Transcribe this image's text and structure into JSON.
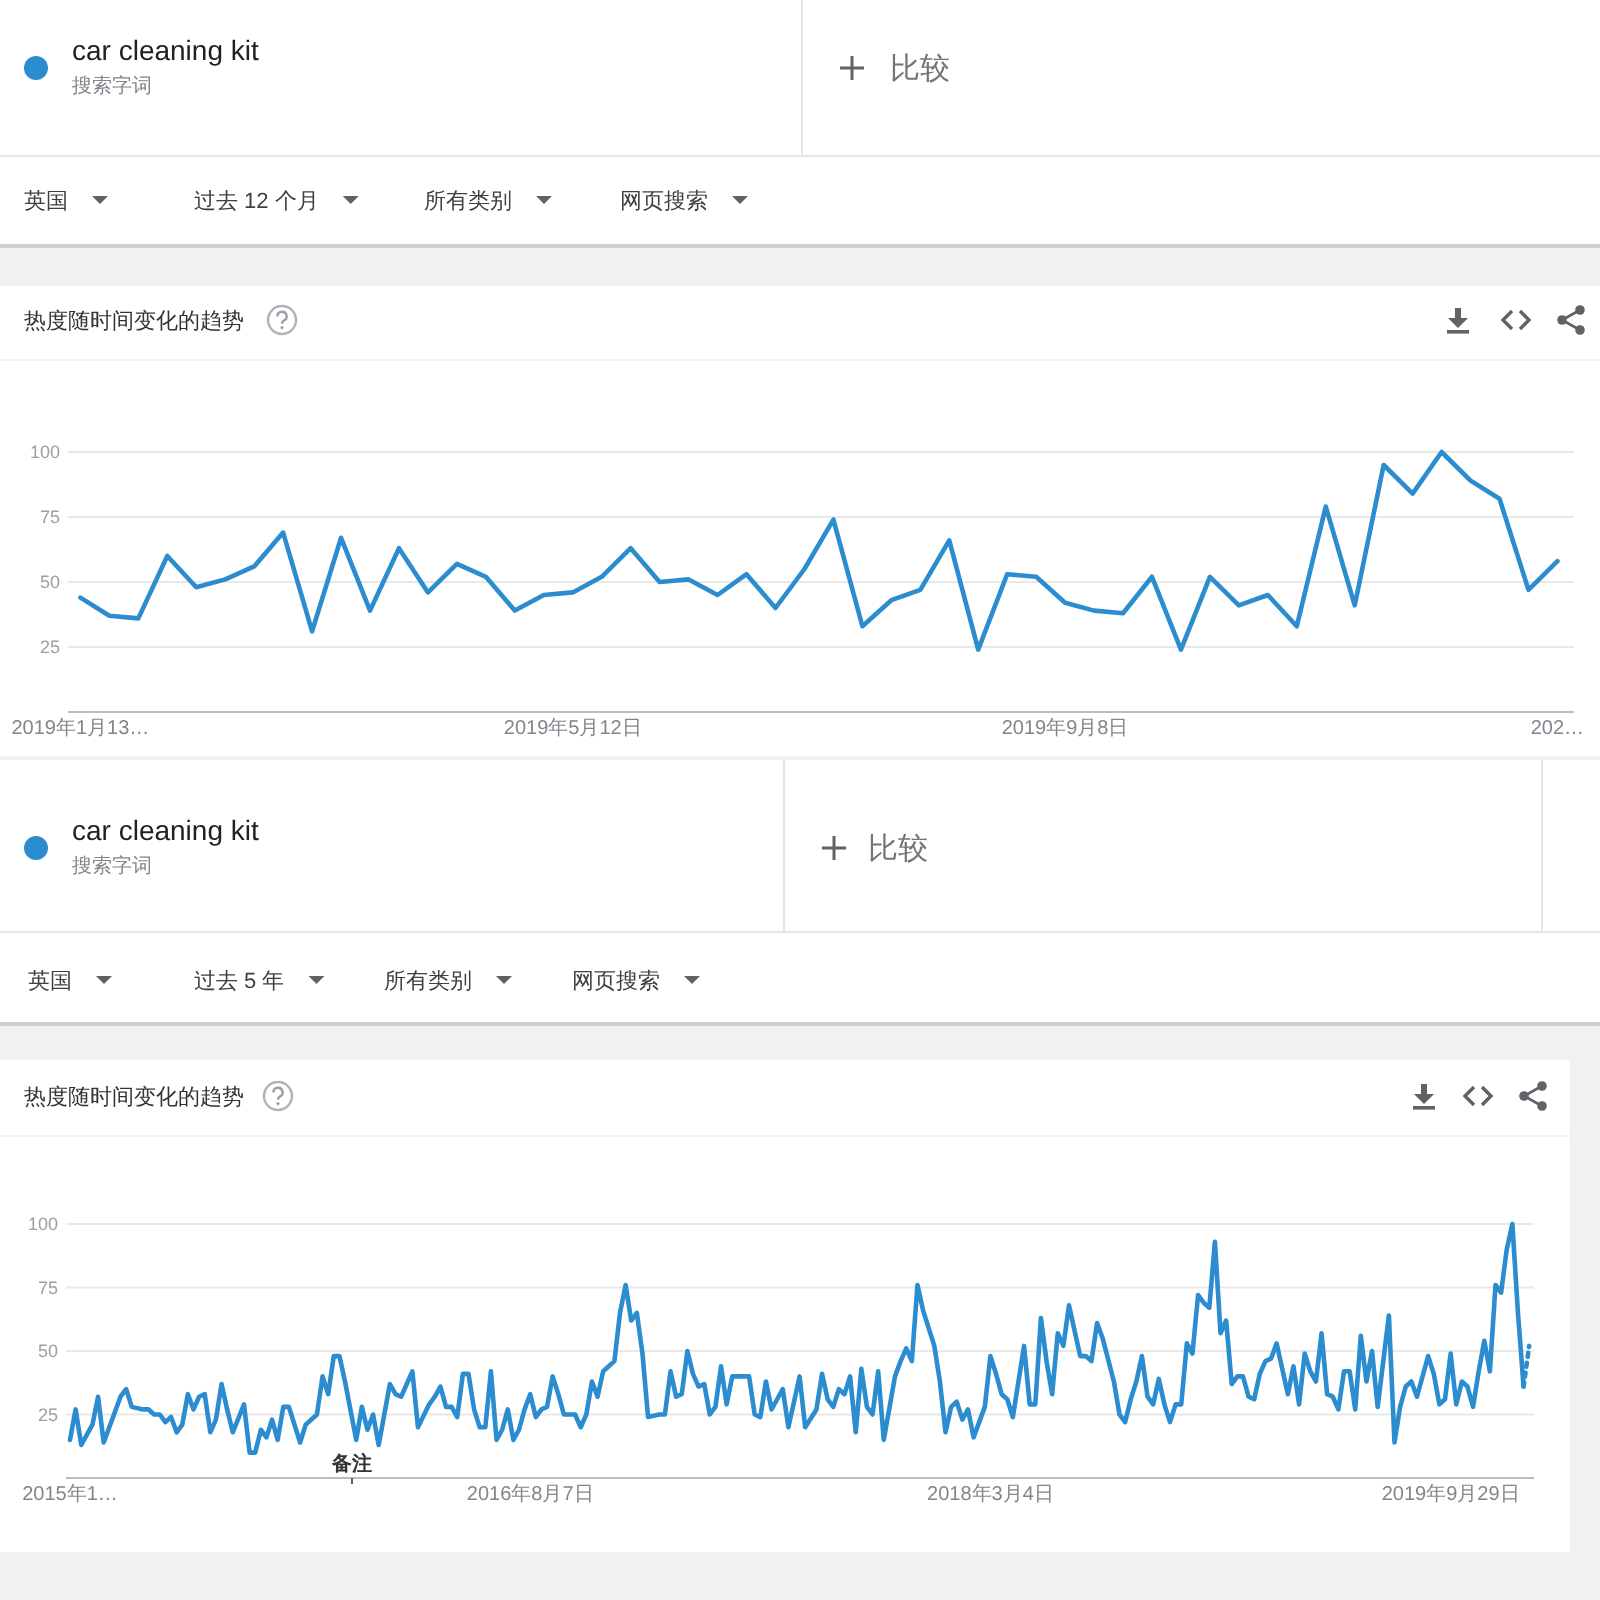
{
  "chart_data": [
    {
      "type": "line",
      "title": "热度随时间变化的趋势",
      "legend": "top left",
      "grid": "y",
      "line_style": "solid",
      "annotations": [
        "搜索字词",
        "比较",
        "英国",
        "过去 12 个月",
        "所有类别",
        "网页搜索"
      ],
      "x": [
        "2019-01-13",
        "2019-01-20",
        "2019-01-27",
        "2019-02-03",
        "2019-02-10",
        "2019-02-17",
        "2019-02-24",
        "2019-03-03",
        "2019-03-10",
        "2019-03-17",
        "2019-03-24",
        "2019-03-31",
        "2019-04-07",
        "2019-04-14",
        "2019-04-21",
        "2019-04-28",
        "2019-05-05",
        "2019-05-12",
        "2019-05-19",
        "2019-05-26",
        "2019-06-02",
        "2019-06-09",
        "2019-06-16",
        "2019-06-23",
        "2019-06-30",
        "2019-07-07",
        "2019-07-14",
        "2019-07-21",
        "2019-07-28",
        "2019-08-04",
        "2019-08-11",
        "2019-08-18",
        "2019-08-25",
        "2019-09-01",
        "2019-09-08",
        "2019-09-15",
        "2019-09-22",
        "2019-09-29",
        "2019-10-06",
        "2019-10-13",
        "2019-10-20",
        "2019-10-27",
        "2019-11-03",
        "2019-11-10",
        "2019-11-17",
        "2019-11-24",
        "2019-12-01",
        "2019-12-08",
        "2019-12-15",
        "2019-12-22",
        "2019-12-29",
        "2020-01-05"
      ],
      "series": [
        {
          "name": "car cleaning kit",
          "color": "#2b8cd0",
          "values": [
            44,
            37,
            36,
            60,
            48,
            51,
            56,
            69,
            31,
            67,
            39,
            63,
            46,
            57,
            52,
            39,
            45,
            46,
            52,
            63,
            50,
            51,
            45,
            53,
            40,
            55,
            74,
            33,
            43,
            47,
            66,
            24,
            53,
            52,
            42,
            39,
            38,
            52,
            24,
            52,
            41,
            45,
            33,
            79,
            41,
            95,
            84,
            100,
            89,
            82,
            47,
            58
          ]
        }
      ],
      "xlim": [
        "2019-01-10",
        "2020-01-09"
      ],
      "xticks": [
        {
          "value": "2019-01-13",
          "label": "2019年1月13…"
        },
        {
          "value": "2019-05-12",
          "label": "2019年5月12日"
        },
        {
          "value": "2019-09-08",
          "label": "2019年9月8日"
        },
        {
          "value": "2020-01-05",
          "label": "202…"
        }
      ],
      "ylim": [
        0,
        100
      ],
      "yticks": [
        25,
        50,
        75,
        100
      ]
    },
    {
      "type": "line",
      "title": "热度随时间变化的趋势",
      "legend": "top left",
      "grid": "y",
      "line_style": "solid",
      "annotations": [
        "搜索字词",
        "比较",
        "英国",
        "过去 5 年",
        "所有类别",
        "网页搜索",
        "备注"
      ],
      "series": [
        {
          "name": "car cleaning kit",
          "color": "#2b8cd0",
          "x": [
            "2015-01-11",
            "2015-01-18",
            "2015-01-25",
            "2015-02-08",
            "2015-02-15",
            "2015-02-22",
            "2015-03-01",
            "2015-03-15",
            "2015-03-22",
            "2015-03-29",
            "2015-04-12",
            "2015-04-19",
            "2015-04-26",
            "2015-05-03",
            "2015-05-10",
            "2015-05-17",
            "2015-05-24",
            "2015-05-31",
            "2015-06-07",
            "2015-06-14",
            "2015-06-21",
            "2015-06-28",
            "2015-07-05",
            "2015-07-12",
            "2015-07-19",
            "2015-07-26",
            "2015-08-02",
            "2015-08-16",
            "2015-08-23",
            "2015-08-30",
            "2015-09-06",
            "2015-09-13",
            "2015-09-20",
            "2015-09-27",
            "2015-10-04",
            "2015-10-11",
            "2015-10-25",
            "2015-11-01",
            "2015-11-15",
            "2015-11-22",
            "2015-11-29",
            "2015-12-06",
            "2015-12-13",
            "2015-12-20",
            "2016-01-03",
            "2016-01-10",
            "2016-01-17",
            "2016-01-24",
            "2016-01-31",
            "2016-02-14",
            "2016-02-21",
            "2016-02-28",
            "2016-03-13",
            "2016-03-20",
            "2016-04-03",
            "2016-04-10",
            "2016-04-17",
            "2016-04-24",
            "2016-05-01",
            "2016-05-08",
            "2016-05-15",
            "2016-05-22",
            "2016-05-29",
            "2016-06-05",
            "2016-06-12",
            "2016-06-19",
            "2016-06-26",
            "2016-07-03",
            "2016-07-10",
            "2016-07-17",
            "2016-07-24",
            "2016-07-31",
            "2016-08-07",
            "2016-08-14",
            "2016-08-21",
            "2016-08-28",
            "2016-09-04",
            "2016-09-11",
            "2016-09-18",
            "2016-10-02",
            "2016-10-09",
            "2016-10-16",
            "2016-10-23",
            "2016-10-30",
            "2016-11-06",
            "2016-11-20",
            "2016-11-27",
            "2016-12-04",
            "2016-12-11",
            "2016-12-18",
            "2016-12-25",
            "2017-01-01",
            "2017-01-15",
            "2017-01-22",
            "2017-01-29",
            "2017-02-05",
            "2017-02-12",
            "2017-02-19",
            "2017-02-26",
            "2017-03-05",
            "2017-03-12",
            "2017-03-19",
            "2017-03-26",
            "2017-04-02",
            "2017-04-09",
            "2017-04-16",
            "2017-04-23",
            "2017-05-07",
            "2017-05-14",
            "2017-05-21",
            "2017-05-28",
            "2017-06-04",
            "2017-06-11",
            "2017-06-18",
            "2017-06-25",
            "2017-07-09",
            "2017-07-16",
            "2017-07-30",
            "2017-08-06",
            "2017-08-13",
            "2017-08-20",
            "2017-08-27",
            "2017-09-03",
            "2017-09-10",
            "2017-09-17",
            "2017-09-24",
            "2017-10-01",
            "2017-10-08",
            "2017-10-15",
            "2017-10-22",
            "2017-11-05",
            "2017-11-12",
            "2017-11-19",
            "2017-11-26",
            "2017-12-03",
            "2017-12-10",
            "2017-12-24",
            "2017-12-31",
            "2018-01-07",
            "2018-01-14",
            "2018-01-21",
            "2018-01-28",
            "2018-02-04",
            "2018-02-11",
            "2018-02-25",
            "2018-03-04",
            "2018-03-11",
            "2018-03-18",
            "2018-03-25",
            "2018-04-01",
            "2018-04-08",
            "2018-04-15",
            "2018-04-22",
            "2018-04-29",
            "2018-05-06",
            "2018-05-13",
            "2018-05-20",
            "2018-05-27",
            "2018-06-03",
            "2018-06-10",
            "2018-06-17",
            "2018-06-24",
            "2018-07-01",
            "2018-07-08",
            "2018-07-15",
            "2018-07-22",
            "2018-08-05",
            "2018-08-12",
            "2018-08-19",
            "2018-08-26",
            "2018-09-02",
            "2018-09-09",
            "2018-09-16",
            "2018-09-23",
            "2018-09-30",
            "2018-10-07",
            "2018-10-14",
            "2018-10-21",
            "2018-10-28",
            "2018-11-04",
            "2018-11-11",
            "2018-11-18",
            "2018-11-25",
            "2018-12-02",
            "2018-12-09",
            "2018-12-16",
            "2018-12-23",
            "2018-12-30",
            "2019-01-06",
            "2019-01-13",
            "2019-01-20",
            "2019-01-27",
            "2019-02-03",
            "2019-02-10",
            "2019-02-17",
            "2019-02-24",
            "2019-03-10",
            "2019-03-17",
            "2019-03-24",
            "2019-03-31",
            "2019-04-07",
            "2019-04-14",
            "2019-04-21",
            "2019-04-28",
            "2019-05-05",
            "2019-05-12",
            "2019-05-19",
            "2019-05-26",
            "2019-06-02",
            "2019-06-09",
            "2019-06-16",
            "2019-06-23",
            "2019-06-30",
            "2019-07-14",
            "2019-07-21",
            "2019-07-28",
            "2019-08-04",
            "2019-08-11",
            "2019-08-18",
            "2019-09-01",
            "2019-09-08",
            "2019-09-15",
            "2019-09-22",
            "2019-09-29",
            "2019-10-06",
            "2019-10-13",
            "2019-10-20",
            "2019-10-27",
            "2019-11-03",
            "2019-11-10",
            "2019-11-17",
            "2019-11-24",
            "2019-12-01",
            "2019-12-08",
            "2019-12-15",
            "2019-12-22",
            "2019-12-29"
          ],
          "values": [
            15,
            27,
            13,
            21,
            32,
            14,
            20,
            32,
            35,
            28,
            27,
            27,
            25,
            25,
            22,
            24,
            18,
            21,
            33,
            27,
            32,
            33,
            18,
            23,
            37,
            27,
            18,
            29,
            10,
            10,
            19,
            16,
            23,
            15,
            28,
            28,
            14,
            21,
            25,
            40,
            33,
            48,
            48,
            38,
            15,
            28,
            19,
            25,
            13,
            37,
            33,
            32,
            42,
            20,
            29,
            32,
            36,
            28,
            28,
            24,
            41,
            41,
            27,
            20,
            20,
            42,
            15,
            19,
            27,
            15,
            19,
            27,
            33,
            24,
            27,
            28,
            40,
            33,
            25,
            25,
            20,
            25,
            38,
            32,
            42,
            46,
            65,
            76,
            62,
            65,
            49,
            24,
            25,
            25,
            42,
            32,
            33,
            50,
            41,
            36,
            37,
            25,
            28,
            44,
            29,
            40,
            40,
            40,
            25,
            24,
            38,
            27,
            31,
            35,
            20,
            40,
            20,
            27,
            41,
            31,
            28,
            35,
            33,
            40,
            18,
            43,
            28,
            25,
            42,
            15,
            40,
            46,
            51,
            46,
            76,
            66,
            52,
            38,
            18,
            28,
            30,
            23,
            27,
            16,
            28,
            48,
            41,
            33,
            31,
            24,
            38,
            52,
            29,
            29,
            63,
            46,
            33,
            57,
            52,
            68,
            58,
            48,
            48,
            46,
            61,
            55,
            38,
            25,
            22,
            31,
            38,
            48,
            32,
            29,
            39,
            29,
            22,
            29,
            29,
            53,
            49,
            72,
            69,
            67,
            93,
            57,
            62,
            37,
            40,
            40,
            32,
            31,
            41,
            46,
            47,
            53,
            33,
            44,
            29,
            49,
            42,
            38,
            57,
            33,
            32,
            27,
            42,
            42,
            27,
            56,
            38,
            50,
            28,
            64,
            14,
            28,
            36,
            38,
            32,
            48,
            41,
            29,
            31,
            49,
            29,
            38,
            36,
            28,
            42,
            54,
            42,
            76,
            73,
            90,
            100,
            65,
            36
          ]
        },
        {
          "type": "line",
          "color": "#2b8cd0",
          "line_style": "dotted",
          "x": [
            "2019-12-29",
            "2020-01-05"
          ],
          "values": [
            36,
            52
          ]
        }
      ],
      "xlim": [
        "2015-01-06",
        "2020-01-11"
      ],
      "xticks": [
        {
          "value": "2015-01-11",
          "label": "2015年1…"
        },
        {
          "value": "2016-08-07",
          "label": "2016年8月7日"
        },
        {
          "value": "2018-03-04",
          "label": "2018年3月4日"
        },
        {
          "value": "2019-09-29",
          "label": "2019年9月29日"
        }
      ],
      "ylim": [
        0,
        100
      ],
      "yticks": [
        25,
        50,
        75,
        100
      ]
    }
  ]
}
